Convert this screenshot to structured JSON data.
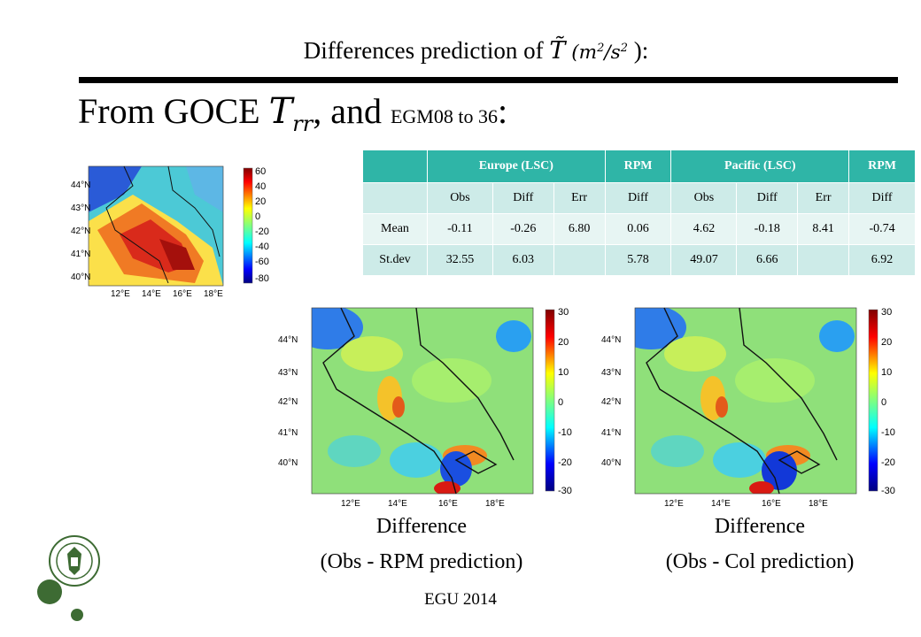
{
  "title": {
    "prefix": "Differences prediction of ",
    "symbol": "T̃",
    "unit_open": " (m",
    "unit_sup1": "2",
    "unit_mid": "/s",
    "unit_sup2": "2",
    "unit_close": " ):"
  },
  "heading": {
    "prefix": "From GOCE ",
    "symbol": "T",
    "sub": "rr",
    "middle": ", and ",
    "small": "EGM08 to 36",
    "suffix": ":"
  },
  "table": {
    "header1": [
      "",
      "Europe (LSC)",
      "RPM",
      "Pacific (LSC)",
      "RPM"
    ],
    "header2": [
      "",
      "Obs",
      "Diff",
      "Err",
      "Diff",
      "Obs",
      "Diff",
      "Err",
      "Diff"
    ],
    "rows": [
      [
        "Mean",
        "-0.11",
        "-0.26",
        "6.80",
        "0.06",
        "4.62",
        "-0.18",
        "8.41",
        "-0.74"
      ],
      [
        "St.dev",
        "32.55",
        "6.03",
        "",
        "5.78",
        "49.07",
        "6.66",
        "",
        "6.92"
      ]
    ]
  },
  "maps": {
    "small": {
      "colorbar_ticks": [
        "60",
        "40",
        "20",
        "0",
        "-20",
        "-40",
        "-60",
        "-80"
      ],
      "lat_ticks": [
        "44°N",
        "43°N",
        "42°N",
        "41°N",
        "40°N"
      ],
      "lon_ticks": [
        "12°E",
        "14°E",
        "16°E",
        "18°E"
      ]
    },
    "large": {
      "colorbar_ticks": [
        "30",
        "20",
        "10",
        "0",
        "-10",
        "-20",
        "-30"
      ],
      "lat_ticks": [
        "44°N",
        "43°N",
        "42°N",
        "41°N",
        "40°N"
      ],
      "lon_ticks": [
        "12°E",
        "14°E",
        "16°E",
        "18°E"
      ]
    }
  },
  "captions": {
    "left_line1": "Difference",
    "left_line2": "(Obs - RPM prediction)",
    "right_line1": "Difference",
    "right_line2": "(Obs - Col prediction)"
  },
  "footer": "EGU 2014",
  "colors": {
    "table_header": "#2fb5a7",
    "table_light": "#e7f5f3",
    "table_mid": "#cdebe8",
    "logo_green": "#3d6b33"
  }
}
